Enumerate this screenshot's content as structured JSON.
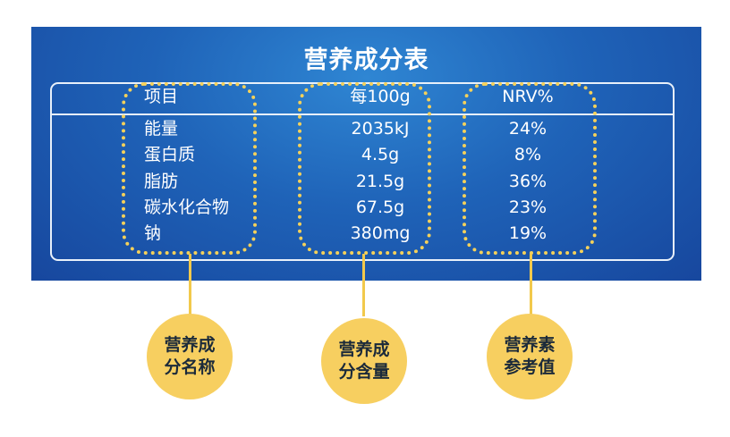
{
  "title": "营养成分表",
  "table": {
    "headers": [
      "项目",
      "每100g",
      "NRV%"
    ],
    "rows": [
      {
        "name": "能量",
        "value": "2035kJ",
        "nrv": "24%"
      },
      {
        "name": "蛋白质",
        "value": "4.5g",
        "nrv": "8%"
      },
      {
        "name": "脂肪",
        "value": "21.5g",
        "nrv": "36%"
      },
      {
        "name": "碳水化合物",
        "value": "67.5g",
        "nrv": "23%"
      },
      {
        "name": "钠",
        "value": "380mg",
        "nrv": "19%"
      }
    ]
  },
  "callouts": [
    {
      "line1": "营养成",
      "line2": "分名称"
    },
    {
      "line1": "营养成",
      "line2": "分含量"
    },
    {
      "line1": "营养素",
      "line2": "参考值"
    }
  ],
  "colors": {
    "panel": "#1f63b8",
    "highlight": "#f5d15a",
    "circle": "#f7cf60",
    "text": "#ffffff"
  }
}
